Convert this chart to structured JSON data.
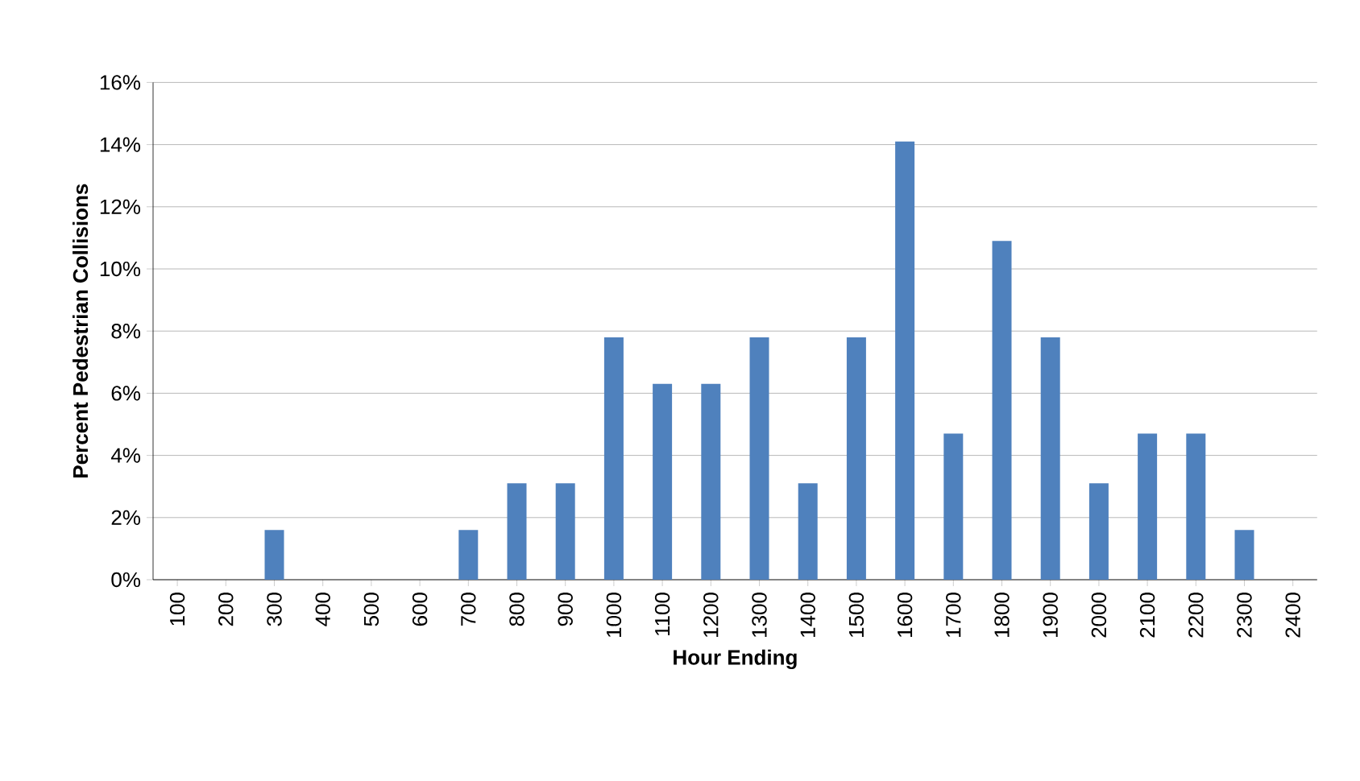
{
  "chart_data": {
    "type": "bar",
    "xlabel": "Hour Ending",
    "ylabel": "Percent Pedestrian Collisions",
    "categories": [
      "100",
      "200",
      "300",
      "400",
      "500",
      "600",
      "700",
      "800",
      "900",
      "1000",
      "1100",
      "1200",
      "1300",
      "1400",
      "1500",
      "1600",
      "1700",
      "1800",
      "1900",
      "2000",
      "2100",
      "2200",
      "2300",
      "2400"
    ],
    "values": [
      0,
      0,
      1.6,
      0,
      0,
      0,
      1.6,
      3.1,
      3.1,
      7.8,
      6.3,
      6.3,
      7.8,
      3.1,
      7.8,
      14.1,
      4.7,
      10.9,
      7.8,
      3.1,
      4.7,
      4.7,
      1.6,
      0
    ],
    "color": "#4f81bd",
    "ylim": [
      0,
      16
    ],
    "yticks": [
      {
        "value": 0,
        "label": "0%"
      },
      {
        "value": 2,
        "label": "2%"
      },
      {
        "value": 4,
        "label": "4%"
      },
      {
        "value": 6,
        "label": "6%"
      },
      {
        "value": 8,
        "label": "8%"
      },
      {
        "value": 10,
        "label": "10%"
      },
      {
        "value": 12,
        "label": "12%"
      },
      {
        "value": 14,
        "label": "14%"
      },
      {
        "value": 16,
        "label": "16%"
      }
    ],
    "grid": "y"
  }
}
